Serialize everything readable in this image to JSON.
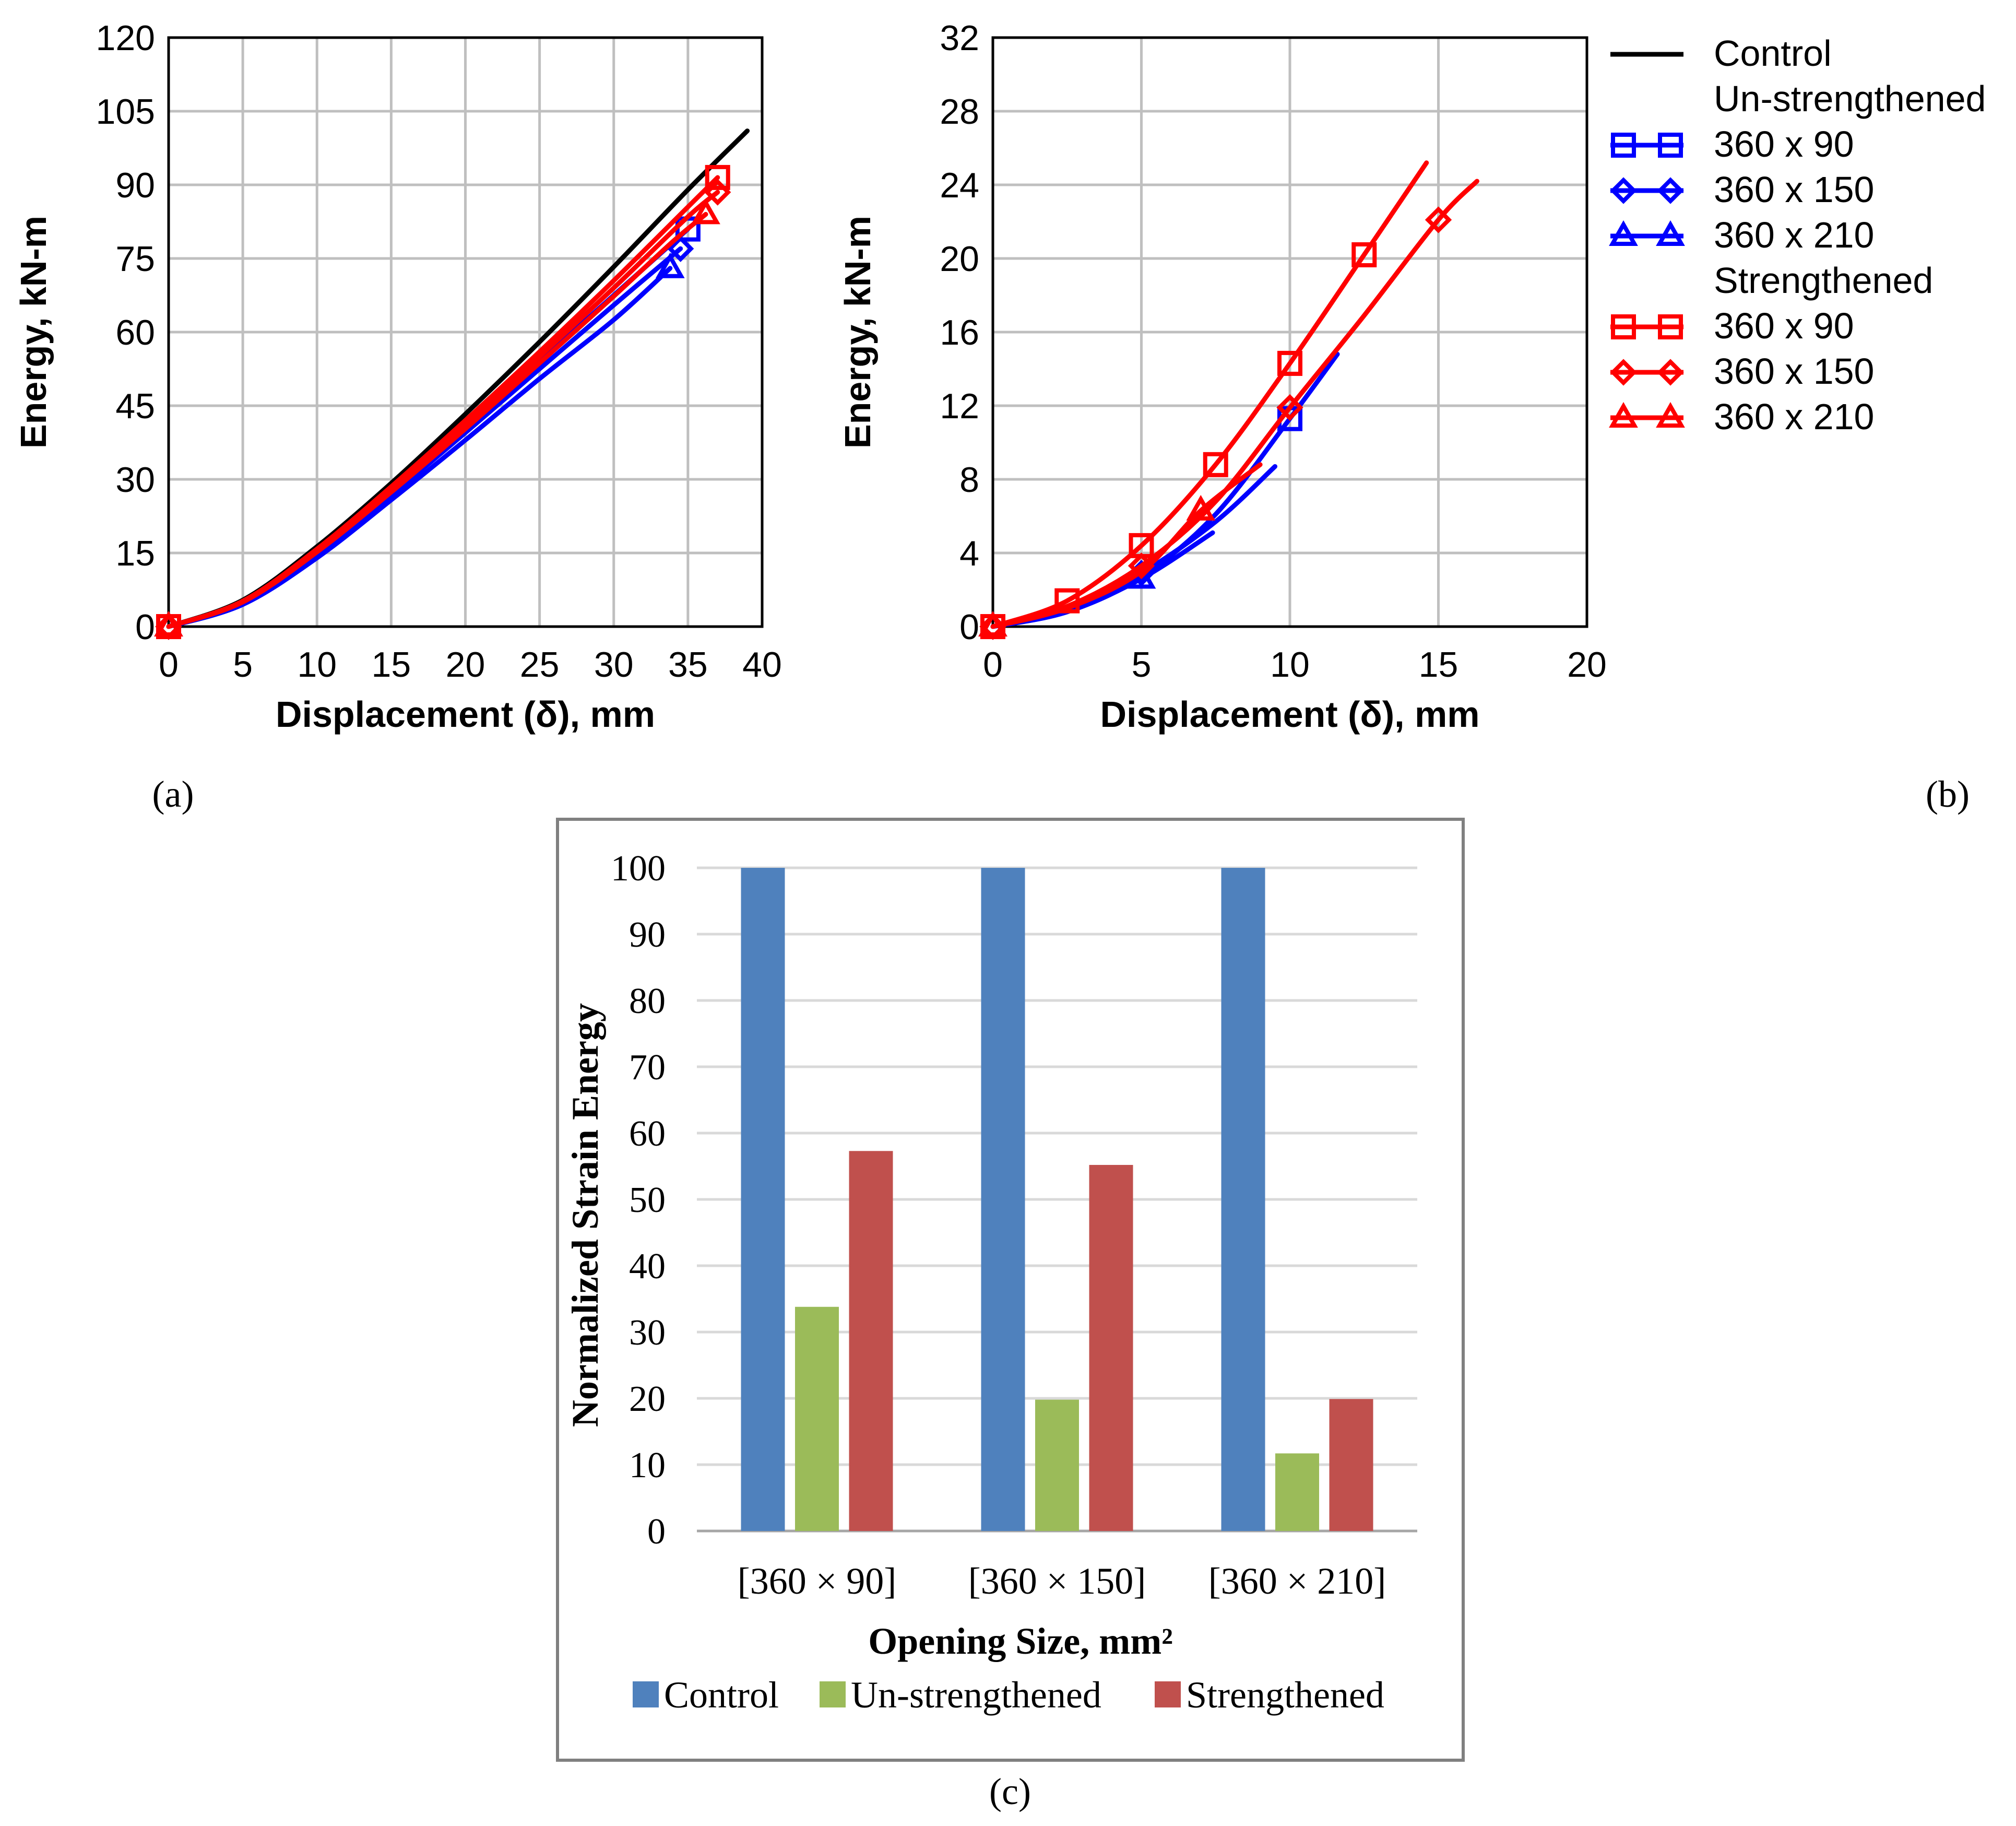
{
  "chart_data": [
    {
      "panel": "a",
      "panel_label": "(a)",
      "type": "line",
      "xlabel": "Displacement (δ), mm",
      "ylabel": "Energy, kN-m",
      "xlim": [
        0,
        40
      ],
      "ylim": [
        0,
        120
      ],
      "xticks": [
        0,
        5,
        10,
        15,
        20,
        25,
        30,
        35,
        40
      ],
      "yticks": [
        0,
        15,
        30,
        45,
        60,
        75,
        90,
        105,
        120
      ],
      "grid": true,
      "series": [
        {
          "name": "Control",
          "color": "#000000",
          "marker": "none",
          "points": [
            [
              0,
              0
            ],
            [
              5,
              5.4
            ],
            [
              10,
              16.3
            ],
            [
              15,
              29.2
            ],
            [
              20,
              43.3
            ],
            [
              25,
              58
            ],
            [
              30,
              73.3
            ],
            [
              35,
              89
            ],
            [
              39,
              101
            ]
          ]
        },
        {
          "name": "Un-strengthened 360 x 90",
          "color": "#0000ff",
          "marker": "square",
          "points": [
            [
              0,
              0
            ],
            [
              5,
              4.8
            ],
            [
              10,
              15
            ],
            [
              15,
              27.5
            ],
            [
              20,
              40.5
            ],
            [
              25,
              54
            ],
            [
              30,
              67.5
            ],
            [
              35,
              81
            ]
          ],
          "marker_points": [
            [
              0,
              0
            ],
            [
              35,
              81
            ]
          ]
        },
        {
          "name": "Un-strengthened 360 x 150",
          "color": "#0000ff",
          "marker": "diamond",
          "points": [
            [
              0,
              0
            ],
            [
              5,
              4.7
            ],
            [
              10,
              14.6
            ],
            [
              15,
              26.8
            ],
            [
              20,
              39.5
            ],
            [
              25,
              52.5
            ],
            [
              30,
              65.5
            ],
            [
              34.5,
              77
            ]
          ],
          "marker_points": [
            [
              0,
              0
            ],
            [
              34.5,
              77
            ]
          ]
        },
        {
          "name": "Un-strengthened 360 x 210",
          "color": "#0000ff",
          "marker": "triangle",
          "points": [
            [
              0,
              0
            ],
            [
              5,
              4.5
            ],
            [
              10,
              14
            ],
            [
              15,
              25.8
            ],
            [
              20,
              38
            ],
            [
              25,
              50.5
            ],
            [
              30,
              62.5
            ],
            [
              33.8,
              73
            ]
          ],
          "marker_points": [
            [
              0,
              0
            ],
            [
              33.8,
              73
            ]
          ]
        },
        {
          "name": "Strengthened 360 x 90",
          "color": "#ff0000",
          "marker": "square",
          "points": [
            [
              0,
              0
            ],
            [
              5,
              5.2
            ],
            [
              10,
              15.8
            ],
            [
              15,
              28.5
            ],
            [
              20,
              42
            ],
            [
              25,
              56
            ],
            [
              30,
              70.5
            ],
            [
              35,
              85.5
            ],
            [
              37,
              91.5
            ]
          ],
          "marker_points": [
            [
              0,
              0
            ],
            [
              37,
              91.5
            ]
          ]
        },
        {
          "name": "Strengthened 360 x 150",
          "color": "#ff0000",
          "marker": "diamond",
          "points": [
            [
              0,
              0
            ],
            [
              5,
              5.1
            ],
            [
              10,
              15.5
            ],
            [
              15,
              28
            ],
            [
              20,
              41.2
            ],
            [
              25,
              55
            ],
            [
              30,
              69
            ],
            [
              35,
              83.5
            ],
            [
              37,
              88.5
            ]
          ],
          "marker_points": [
            [
              0,
              0
            ],
            [
              37,
              88.5
            ]
          ]
        },
        {
          "name": "Strengthened 360 x 210",
          "color": "#ff0000",
          "marker": "triangle",
          "points": [
            [
              0,
              0
            ],
            [
              5,
              5
            ],
            [
              10,
              15.2
            ],
            [
              15,
              27.4
            ],
            [
              20,
              40.3
            ],
            [
              25,
              53.7
            ],
            [
              30,
              67.3
            ],
            [
              34,
              78.5
            ],
            [
              36.2,
              84
            ]
          ],
          "marker_points": [
            [
              0,
              0
            ],
            [
              36.2,
              84
            ]
          ]
        }
      ]
    },
    {
      "panel": "b",
      "panel_label": "(b)",
      "type": "line",
      "xlabel": "Displacement (δ), mm",
      "ylabel": "Energy, kN-m",
      "xlim": [
        0,
        20
      ],
      "ylim": [
        0,
        32
      ],
      "xticks": [
        0,
        5,
        10,
        15,
        20
      ],
      "yticks": [
        0,
        4,
        8,
        12,
        16,
        20,
        24,
        28,
        32
      ],
      "grid": true,
      "series": [
        {
          "name": "Un-strengthened 360 x 90",
          "color": "#0000ff",
          "marker": "square",
          "points": [
            [
              0,
              0
            ],
            [
              2.5,
              0.8
            ],
            [
              5,
              2.7
            ],
            [
              7.5,
              6.1
            ],
            [
              10,
              11.3
            ],
            [
              11.6,
              14.8
            ]
          ],
          "marker_points": [
            [
              0,
              0
            ],
            [
              10,
              11.3
            ]
          ]
        },
        {
          "name": "Un-strengthened 360 x 150",
          "color": "#0000ff",
          "marker": "diamond",
          "points": [
            [
              0,
              0
            ],
            [
              2.5,
              0.9
            ],
            [
              5,
              2.9
            ],
            [
              7.5,
              5.7
            ],
            [
              9.5,
              8.7
            ]
          ],
          "marker_points": [
            [
              0,
              0
            ],
            [
              5,
              2.9
            ]
          ]
        },
        {
          "name": "Un-strengthened 360 x 210",
          "color": "#0000ff",
          "marker": "triangle",
          "points": [
            [
              0,
              0
            ],
            [
              2.5,
              0.8
            ],
            [
              5,
              2.6
            ],
            [
              7.4,
              5.1
            ]
          ],
          "marker_points": [
            [
              0,
              0
            ],
            [
              5,
              2.6
            ]
          ]
        },
        {
          "name": "Strengthened 360 x 90",
          "color": "#ff0000",
          "marker": "square",
          "points": [
            [
              0,
              0
            ],
            [
              2.5,
              1.4
            ],
            [
              5,
              4.4
            ],
            [
              7.5,
              8.8
            ],
            [
              10,
              14.3
            ],
            [
              12.5,
              20.2
            ],
            [
              14.6,
              25.2
            ]
          ],
          "marker_points": [
            [
              0,
              0
            ],
            [
              2.5,
              1.4
            ],
            [
              5,
              4.4
            ],
            [
              7.5,
              8.8
            ],
            [
              10,
              14.3
            ],
            [
              12.5,
              20.2
            ]
          ]
        },
        {
          "name": "Strengthened 360 x 150",
          "color": "#ff0000",
          "marker": "diamond",
          "points": [
            [
              0,
              0
            ],
            [
              2.5,
              1.1
            ],
            [
              5,
              3.3
            ],
            [
              7.5,
              6.8
            ],
            [
              10,
              11.9
            ],
            [
              12.5,
              16.9
            ],
            [
              15,
              22.1
            ],
            [
              16.3,
              24.2
            ]
          ],
          "marker_points": [
            [
              0,
              0
            ],
            [
              5,
              3.3
            ],
            [
              10,
              11.9
            ],
            [
              15,
              22.1
            ]
          ]
        },
        {
          "name": "Strengthened 360 x 210",
          "color": "#ff0000",
          "marker": "triangle",
          "points": [
            [
              0,
              0
            ],
            [
              2.5,
              1
            ],
            [
              5,
              3
            ],
            [
              7,
              6.3
            ],
            [
              9,
              8.8
            ]
          ],
          "marker_points": [
            [
              0,
              0
            ],
            [
              7,
              6.3
            ]
          ]
        }
      ],
      "legend": {
        "placement": "right",
        "entries": [
          {
            "label": "Control",
            "color": "#000000",
            "marker": "none"
          },
          {
            "label": "Un-strengthened",
            "heading": true
          },
          {
            "label": "360 x 90",
            "color": "#0000ff",
            "marker": "square"
          },
          {
            "label": "360 x 150",
            "color": "#0000ff",
            "marker": "diamond"
          },
          {
            "label": "360 x 210",
            "color": "#0000ff",
            "marker": "triangle"
          },
          {
            "label": "Strengthened",
            "heading": true
          },
          {
            "label": "360 x 90",
            "color": "#ff0000",
            "marker": "square"
          },
          {
            "label": "360 x 150",
            "color": "#ff0000",
            "marker": "diamond"
          },
          {
            "label": "360 x 210",
            "color": "#ff0000",
            "marker": "triangle"
          }
        ]
      }
    },
    {
      "panel": "c",
      "panel_label": "(c)",
      "type": "bar",
      "xlabel": "Opening Size, mm²",
      "ylabel": "Normalized Strain Energy",
      "ylim": [
        0,
        100
      ],
      "yticks": [
        0,
        10,
        20,
        30,
        40,
        50,
        60,
        70,
        80,
        90,
        100
      ],
      "grid": true,
      "categories": [
        "[360 × 90]",
        "[360 × 150]",
        "[360 × 210]"
      ],
      "series": [
        {
          "name": "Control",
          "color": "#4f81bd",
          "values": [
            100,
            100,
            100
          ]
        },
        {
          "name": "Un-strengthened",
          "color": "#9bbb59",
          "values": [
            33.8,
            19.8,
            11.7
          ]
        },
        {
          "name": "Strengthened",
          "color": "#c0504d",
          "values": [
            57.3,
            55.2,
            19.9
          ]
        }
      ],
      "legend": {
        "placement": "bottom"
      }
    }
  ]
}
